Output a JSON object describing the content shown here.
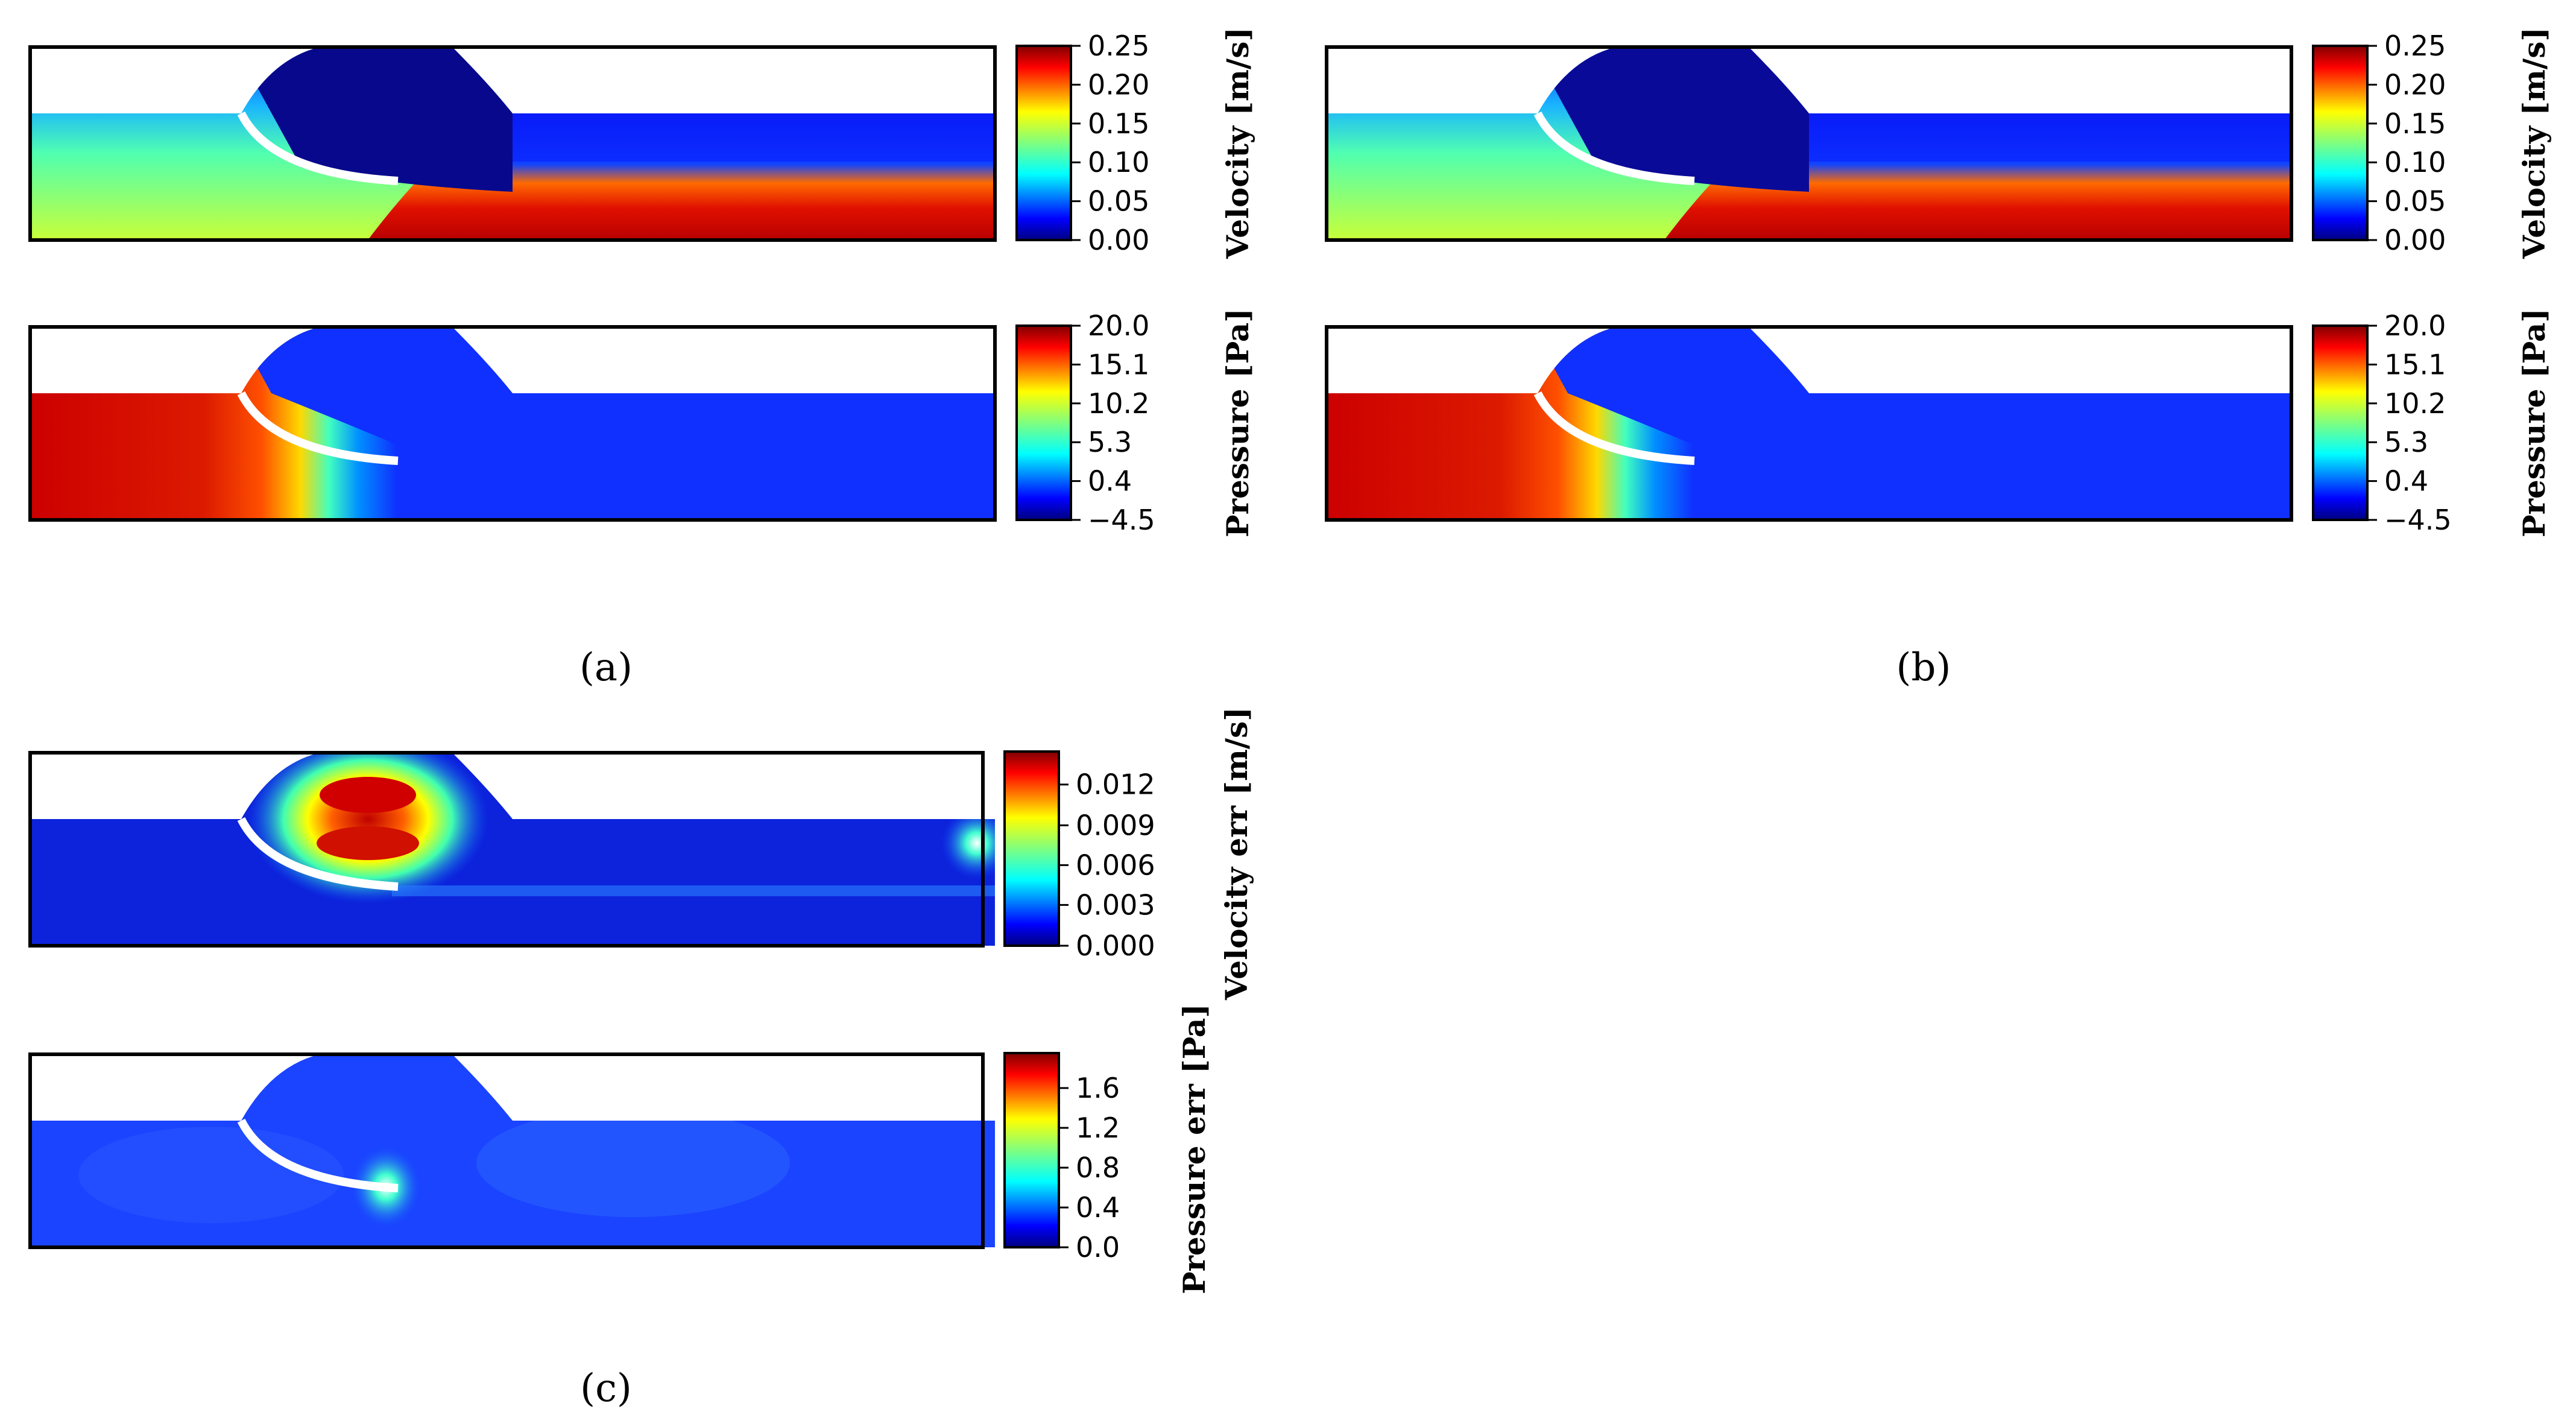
{
  "chart_data": [
    {
      "type": "heatmap",
      "panel": "a",
      "field": "velocity",
      "colorbar_label": "Velocity [m/s]",
      "ticks": [
        "0.25",
        "0.20",
        "0.15",
        "0.10",
        "0.05",
        "0.00"
      ],
      "range": [
        0.0,
        0.25
      ]
    },
    {
      "type": "heatmap",
      "panel": "a",
      "field": "pressure",
      "colorbar_label": "Pressure [Pa]",
      "ticks": [
        "20.0",
        "15.1",
        "10.2",
        "5.3",
        "0.4",
        "−4.5"
      ],
      "range": [
        -4.5,
        20.0
      ]
    },
    {
      "type": "heatmap",
      "panel": "b",
      "field": "velocity",
      "colorbar_label": "Velocity [m/s]",
      "ticks": [
        "0.25",
        "0.20",
        "0.15",
        "0.10",
        "0.05",
        "0.00"
      ],
      "range": [
        0.0,
        0.25
      ]
    },
    {
      "type": "heatmap",
      "panel": "b",
      "field": "pressure",
      "colorbar_label": "Pressure [Pa]",
      "ticks": [
        "20.0",
        "15.1",
        "10.2",
        "5.3",
        "0.4",
        "−4.5"
      ],
      "range": [
        -4.5,
        20.0
      ]
    },
    {
      "type": "heatmap",
      "panel": "c",
      "field": "velocity error",
      "colorbar_label": "Velocity err [m/s]",
      "ticks": [
        "0.012",
        "0.009",
        "0.006",
        "0.003",
        "0.000"
      ],
      "range": [
        0.0,
        0.0145
      ]
    },
    {
      "type": "heatmap",
      "panel": "c",
      "field": "pressure error",
      "colorbar_label": "Pressure err [Pa]",
      "ticks": [
        "1.6",
        "1.2",
        "0.8",
        "0.4",
        "0.0"
      ],
      "range": [
        0.0,
        1.95
      ]
    }
  ],
  "captions": {
    "a": "(a)",
    "b": "(b)",
    "c": "(c)"
  },
  "colors": {
    "jet": [
      "#00007f",
      "#0000ff",
      "#007fff",
      "#00ffff",
      "#7fff7f",
      "#ffff00",
      "#ff7f00",
      "#ff0000",
      "#7f0000"
    ]
  }
}
